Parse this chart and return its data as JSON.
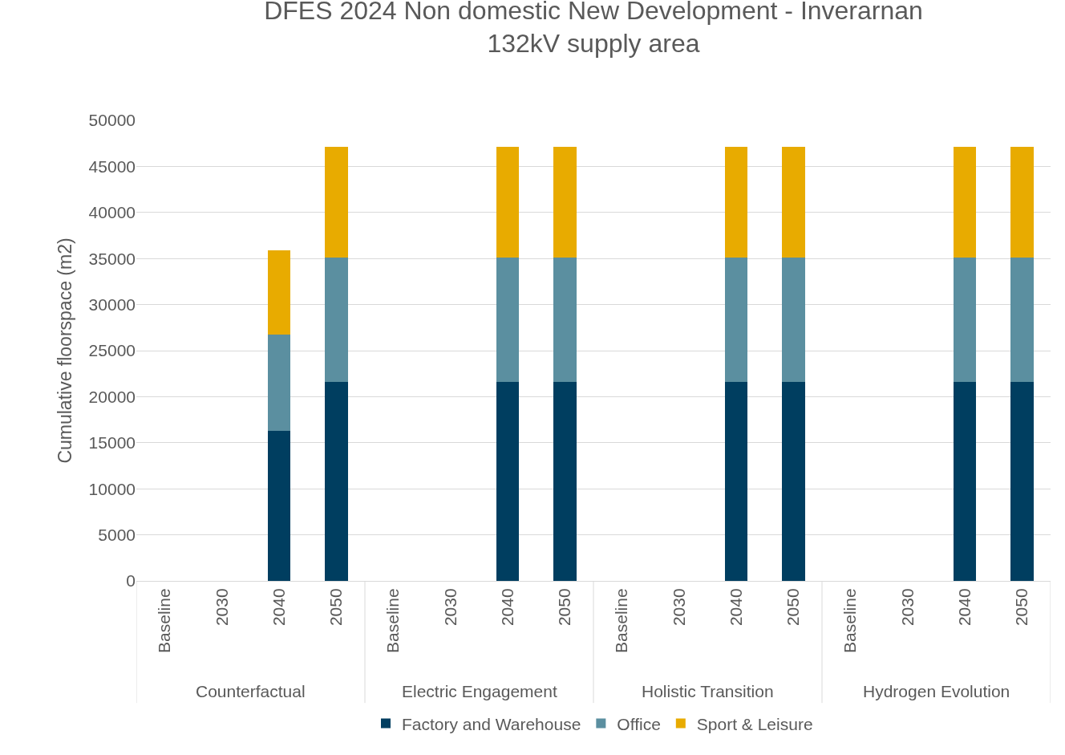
{
  "chart_data": {
    "type": "bar",
    "title": "DFES 2024 Non domestic New Development - Inverarnan\n132kV supply area",
    "ylabel": "Cumulative floorspace (m2)",
    "categories": [
      "Baseline",
      "2030",
      "2040",
      "2050",
      "Baseline",
      "2030",
      "2040",
      "2050",
      "Baseline",
      "2030",
      "2040",
      "2050",
      "Baseline",
      "2030",
      "2040",
      "2050"
    ],
    "annotations": [
      "Counterfactual",
      "Electric Engagement",
      "Holistic Transition",
      "Hydrogen Evolution"
    ],
    "series": [
      {
        "name": "Factory and Warehouse",
        "color": "#003e60",
        "values": [
          0,
          0,
          16300,
          21600,
          0,
          0,
          21600,
          21600,
          0,
          0,
          21600,
          21600,
          0,
          0,
          21600,
          21600
        ]
      },
      {
        "name": "Office",
        "color": "#5b8fa0",
        "values": [
          0,
          0,
          10400,
          13500,
          0,
          0,
          13500,
          13500,
          0,
          0,
          13500,
          13500,
          0,
          0,
          13500,
          13500
        ]
      },
      {
        "name": "Sport & Leisure",
        "color": "#e8ab00",
        "values": [
          0,
          0,
          9200,
          12000,
          0,
          0,
          12000,
          12000,
          0,
          0,
          12000,
          12000,
          0,
          0,
          12000,
          12000
        ]
      }
    ],
    "stacked": true,
    "ylim": [
      0,
      50000
    ],
    "yticks": [
      0,
      5000,
      10000,
      15000,
      20000,
      25000,
      30000,
      35000,
      40000,
      45000,
      50000
    ],
    "grid": "y",
    "legend": "bottom"
  }
}
